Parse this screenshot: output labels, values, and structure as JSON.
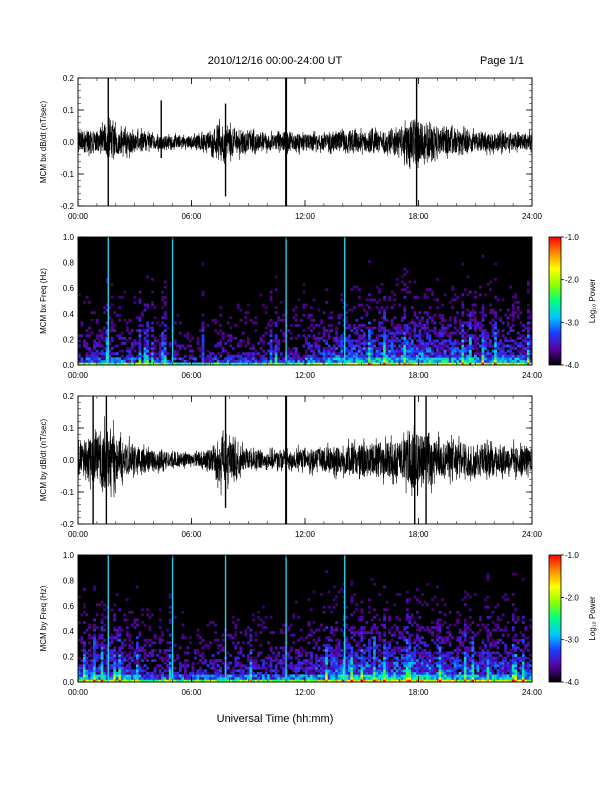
{
  "header": {
    "title": "2010/12/16  00:00-24:00 UT",
    "page": "Page 1/1"
  },
  "footer": {
    "xlabel": "Universal Time (hh:mm)"
  },
  "colorbar": {
    "label": "Log₁₀ Power",
    "ticks": [
      "-1.0",
      "-2.0",
      "-3.0",
      "-4.0"
    ],
    "tick_values": [
      -1,
      -2,
      -3,
      -4
    ],
    "range": [
      -4,
      -1
    ],
    "colors": [
      "#000000",
      "#5a00a0",
      "#1e3cff",
      "#00c8ff",
      "#00ff80",
      "#8cff00",
      "#ffff00",
      "#ff8c00",
      "#ff0000"
    ]
  },
  "chart_data": [
    {
      "type": "line",
      "name": "panel1",
      "ylabel": "MCM bx dB/dt (nT/sec)",
      "xlim": [
        0,
        24
      ],
      "ylim": [
        -0.2,
        0.2
      ],
      "xticks": [
        "00:00",
        "06:00",
        "12:00",
        "18:00",
        "24:00"
      ],
      "yticks": [
        "0.2",
        "0.1",
        "0.0",
        "-0.1",
        "-0.2"
      ],
      "ytick_values": [
        0.2,
        0.1,
        0.0,
        -0.1,
        -0.2
      ],
      "envelope": {
        "x": [
          0,
          1,
          1.8,
          2,
          3,
          4,
          5,
          6,
          7,
          7.5,
          8,
          9,
          10,
          11,
          12,
          13,
          14,
          15,
          16,
          17,
          17.5,
          17.8,
          18,
          18.3,
          19,
          20,
          21,
          22,
          23,
          24
        ],
        "amplitude": [
          0.05,
          0.06,
          0.09,
          0.07,
          0.05,
          0.04,
          0.03,
          0.03,
          0.05,
          0.09,
          0.08,
          0.05,
          0.04,
          0.05,
          0.04,
          0.04,
          0.05,
          0.05,
          0.05,
          0.07,
          0.09,
          0.14,
          0.12,
          0.09,
          0.07,
          0.06,
          0.05,
          0.05,
          0.04,
          0.04
        ]
      },
      "spikes": [
        [
          1.6,
          0.2,
          -0.2
        ],
        [
          11.0,
          0.2,
          -0.2
        ],
        [
          17.9,
          0.2,
          -0.2
        ],
        [
          7.8,
          0.12,
          -0.17
        ],
        [
          4.4,
          0.13,
          -0.05
        ]
      ]
    },
    {
      "type": "heatmap",
      "name": "panel2",
      "ylabel": "MCM bx Freq (Hz)",
      "xlim": [
        0,
        24
      ],
      "ylim": [
        0,
        1
      ],
      "xticks": [
        "00:00",
        "06:00",
        "12:00",
        "18:00",
        "24:00"
      ],
      "yticks": [
        "1.0",
        "0.8",
        "0.6",
        "0.4",
        "0.2",
        "0.0"
      ],
      "ytick_values": [
        1.0,
        0.8,
        0.6,
        0.4,
        0.2,
        0.0
      ],
      "zlim": [
        -4,
        -1
      ],
      "vertical_lines": [
        1.6,
        5.0,
        11.0,
        14.1
      ],
      "activity": {
        "x": [
          0,
          2,
          4,
          6,
          8,
          10,
          12,
          14,
          16,
          18,
          20,
          22,
          24
        ],
        "level": [
          0.45,
          0.5,
          0.35,
          0.3,
          0.4,
          0.35,
          0.5,
          0.7,
          0.75,
          0.8,
          0.7,
          0.65,
          0.6
        ]
      }
    },
    {
      "type": "line",
      "name": "panel3",
      "ylabel": "MCM by dB/dt (nT/sec)",
      "xlim": [
        0,
        24
      ],
      "ylim": [
        -0.2,
        0.2
      ],
      "xticks": [
        "00:00",
        "06:00",
        "12:00",
        "18:00",
        "24:00"
      ],
      "yticks": [
        "0.2",
        "0.1",
        "0.0",
        "-0.1",
        "-0.2"
      ],
      "ytick_values": [
        0.2,
        0.1,
        0.0,
        -0.1,
        -0.2
      ],
      "envelope": {
        "x": [
          0,
          1,
          1.5,
          2,
          3,
          4,
          5,
          6,
          7,
          7.5,
          8,
          9,
          10,
          11,
          12,
          13,
          14,
          15,
          16,
          17,
          17.5,
          18,
          18.5,
          19,
          20,
          21,
          22,
          23,
          24
        ],
        "amplitude": [
          0.08,
          0.12,
          0.16,
          0.12,
          0.06,
          0.05,
          0.04,
          0.03,
          0.06,
          0.12,
          0.1,
          0.05,
          0.04,
          0.05,
          0.05,
          0.06,
          0.07,
          0.08,
          0.09,
          0.1,
          0.12,
          0.15,
          0.12,
          0.1,
          0.09,
          0.08,
          0.07,
          0.07,
          0.06
        ]
      },
      "spikes": [
        [
          1.5,
          0.2,
          -0.2
        ],
        [
          11.0,
          0.2,
          -0.2
        ],
        [
          17.8,
          0.2,
          -0.2
        ],
        [
          18.4,
          0.2,
          -0.2
        ],
        [
          7.8,
          0.2,
          -0.15
        ],
        [
          0.8,
          0.2,
          -0.2
        ]
      ]
    },
    {
      "type": "heatmap",
      "name": "panel4",
      "ylabel": "MCM by Freq (Hz)",
      "xlim": [
        0,
        24
      ],
      "ylim": [
        0,
        1
      ],
      "xticks": [
        "00:00",
        "06:00",
        "12:00",
        "18:00",
        "24:00"
      ],
      "yticks": [
        "1.0",
        "0.8",
        "0.6",
        "0.4",
        "0.2",
        "0.0"
      ],
      "ytick_values": [
        1.0,
        0.8,
        0.6,
        0.4,
        0.2,
        0.0
      ],
      "zlim": [
        -4,
        -1
      ],
      "vertical_lines": [
        1.6,
        5.0,
        7.8,
        11.0,
        14.1
      ],
      "activity": {
        "x": [
          0,
          2,
          4,
          6,
          8,
          10,
          12,
          14,
          16,
          18,
          20,
          22,
          24
        ],
        "level": [
          0.65,
          0.7,
          0.5,
          0.45,
          0.55,
          0.5,
          0.6,
          0.8,
          0.8,
          0.85,
          0.75,
          0.7,
          0.65
        ]
      }
    }
  ]
}
